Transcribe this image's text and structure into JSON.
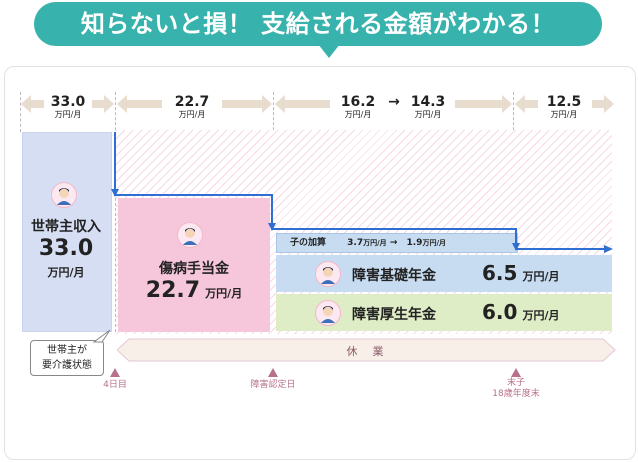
{
  "title": "知らないと損！ 支給される金額がわかる！",
  "header": {
    "seg1": {
      "value": "33.0",
      "unit": "万円/月"
    },
    "seg2": {
      "value": "22.7",
      "unit": "万円/月"
    },
    "seg3a": {
      "value": "16.2",
      "unit": "万円/月"
    },
    "arrow": "→",
    "seg3b": {
      "value": "14.3",
      "unit": "万円/月"
    },
    "seg4": {
      "value": "12.5",
      "unit": "万円/月"
    }
  },
  "income": {
    "label": "世帯主収入",
    "value": "33.0",
    "unit": "万円/月"
  },
  "sickness": {
    "label": "傷病手当金",
    "value": "22.7",
    "unit": "万円/月"
  },
  "child": {
    "label": "子の加算",
    "from": "3.7",
    "from_unit": "万円/月",
    "arrow": "→",
    "to": "1.9",
    "to_unit": "万円/月"
  },
  "basic": {
    "label": "障害基礎年金",
    "value": "6.5",
    "unit": "万円/月"
  },
  "welfare": {
    "label": "障害厚生年金",
    "value": "6.0",
    "unit": "万円/月"
  },
  "callout": {
    "line1": "世帯主が",
    "line2": "要介護状態"
  },
  "leave": "休　業",
  "ticks": {
    "t1": "4日目",
    "t2": "障害認定日",
    "t3a": "末子",
    "t3b": "18歳年度末"
  },
  "colors": {
    "teal": "#37b2ac",
    "pink": "#f6c6da",
    "blue": "#c7dcf1",
    "green": "#dfedc6",
    "arrow": "#2f6fd1"
  }
}
